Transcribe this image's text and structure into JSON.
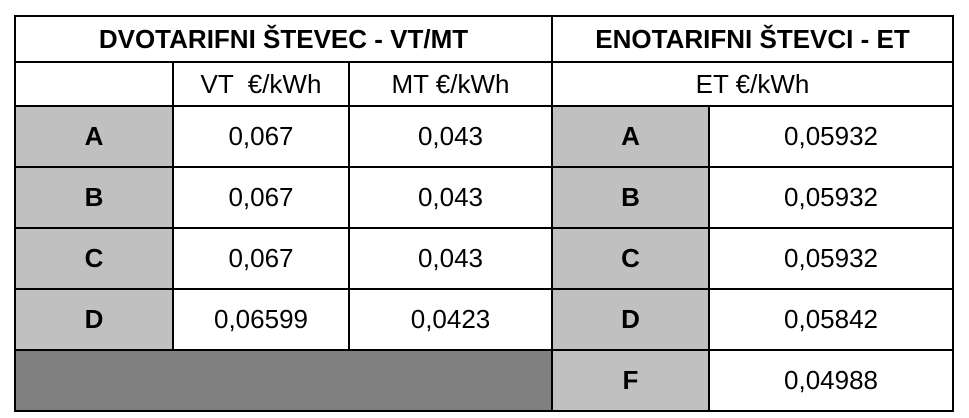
{
  "header": {
    "two_tariff_title": "DVOTARIFNI ŠTEVEC - VT/MT",
    "single_tariff_title": "ENOTARIFNI ŠTEVCI - ET",
    "vt_label": "VT  €/kWh",
    "mt_label": "MT €/kWh",
    "et_label": "ET €/kWh"
  },
  "two_tariff_rows": [
    {
      "group": "A",
      "vt": "0,067",
      "mt": "0,043"
    },
    {
      "group": "B",
      "vt": "0,067",
      "mt": "0,043"
    },
    {
      "group": "C",
      "vt": "0,067",
      "mt": "0,043"
    },
    {
      "group": "D",
      "vt": "0,06599",
      "mt": "0,0423"
    }
  ],
  "single_tariff_rows": [
    {
      "group": "A",
      "et": "0,05932"
    },
    {
      "group": "B",
      "et": "0,05932"
    },
    {
      "group": "C",
      "et": "0,05932"
    },
    {
      "group": "D",
      "et": "0,05842"
    },
    {
      "group": "F",
      "et": "0,04988"
    }
  ],
  "colors": {
    "label_background": "#c0c0c0",
    "filler_background": "#808080",
    "border": "#000000"
  }
}
